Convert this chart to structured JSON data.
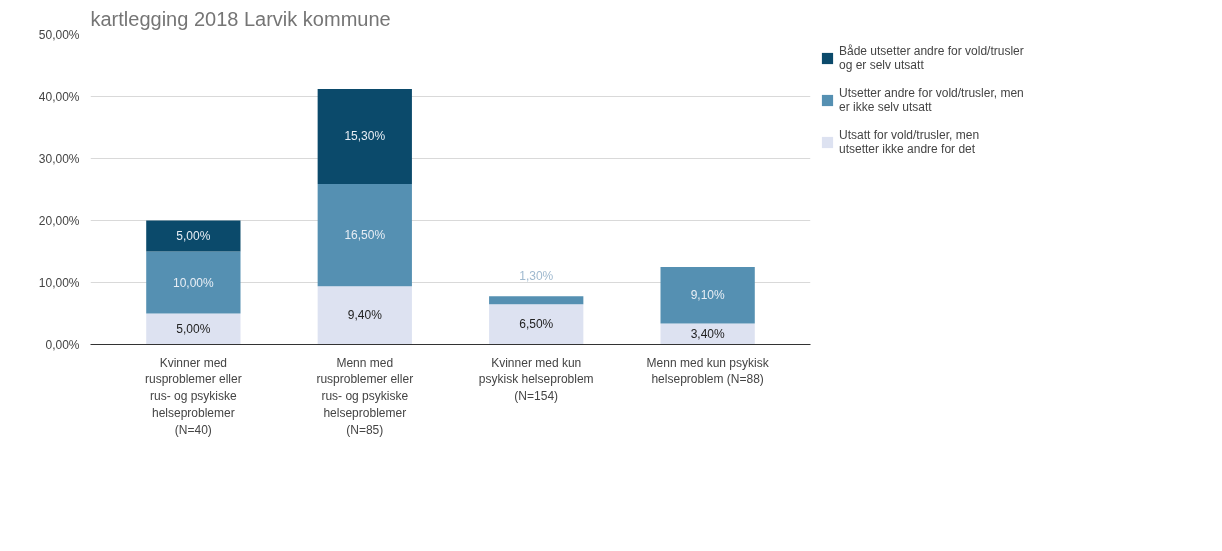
{
  "chart_data": {
    "type": "bar",
    "stacked": true,
    "title": "kartlegging 2018 Larvik kommune",
    "categories": [
      "Kvinner med rusproblemer eller rus- og psykiske helseproblemer (N=40)",
      "Menn med rusproblemer eller rus- og psykiske helseproblemer (N=85)",
      "Kvinner med kun psykisk helseproblem (N=154)",
      "Menn med kun psykisk helseproblem (N=88)"
    ],
    "series": [
      {
        "name": "Utsatt for vold/trusler, men utsetter ikke andre for det",
        "color": "#dde2f1",
        "values": [
          5.0,
          9.4,
          6.5,
          3.4
        ],
        "value_labels": [
          "5,00%",
          "9,40%",
          "6,50%",
          "3,40%"
        ]
      },
      {
        "name": "Utsetter andre for vold/trusler, men er ikke selv utsatt",
        "color": "#5590b2",
        "values": [
          10.0,
          16.5,
          1.3,
          9.1
        ],
        "value_labels": [
          "10,00%",
          "16,50%",
          "1,30%",
          "9,10%"
        ]
      },
      {
        "name": "Både utsetter andre for vold/trusler og er selv utsatt",
        "color": "#0b4a6b",
        "values": [
          5.0,
          15.3,
          null,
          null
        ],
        "value_labels": [
          "5,00%",
          "15,30%",
          null,
          null
        ]
      }
    ],
    "ylim": [
      0,
      50
    ],
    "yticks": [
      {
        "value": 0,
        "label": "0,00%"
      },
      {
        "value": 10,
        "label": "10,00%"
      },
      {
        "value": 20,
        "label": "20,00%"
      },
      {
        "value": 30,
        "label": "30,00%"
      },
      {
        "value": 40,
        "label": "40,00%"
      },
      {
        "value": 50,
        "label": "50,00%"
      }
    ],
    "grid": "y",
    "legend": "right"
  }
}
